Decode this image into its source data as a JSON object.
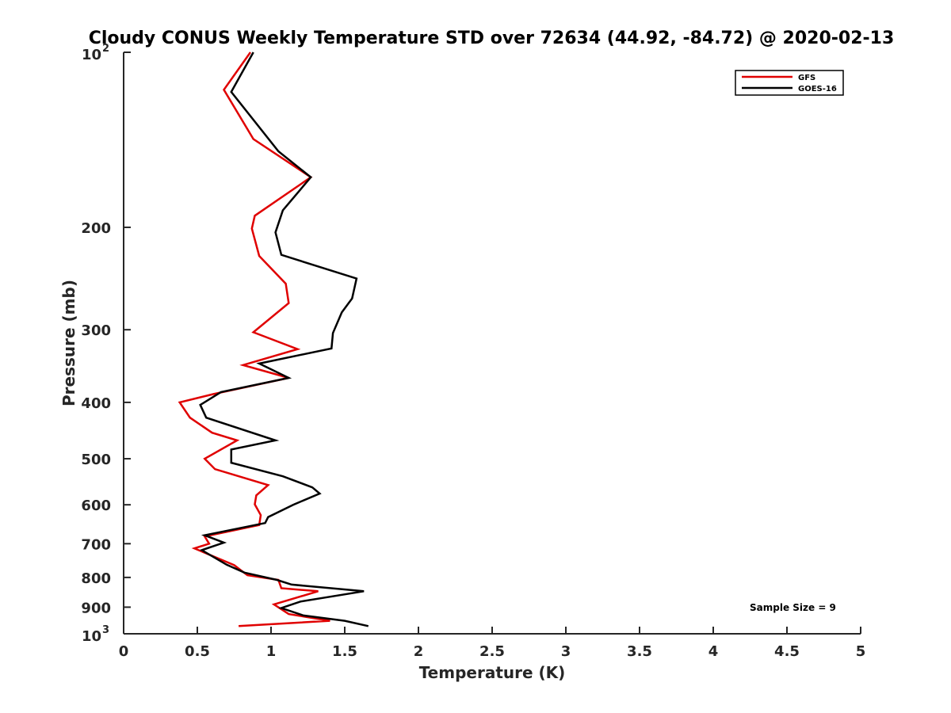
{
  "chart_data": {
    "type": "line",
    "title": "Cloudy CONUS Weekly Temperature STD over 72634 (44.92, -84.72) @ 2020-02-13",
    "xlabel": "Temperature (K)",
    "ylabel": "Pressure (mb)",
    "xlim": [
      0,
      5
    ],
    "ylim": [
      100,
      1000
    ],
    "y_scale": "log",
    "y_reversed": true,
    "grid": false,
    "legend_position": "top-right",
    "x_ticks": [
      {
        "value": 0,
        "label": "0"
      },
      {
        "value": 0.5,
        "label": "0.5"
      },
      {
        "value": 1,
        "label": "1"
      },
      {
        "value": 1.5,
        "label": "1.5"
      },
      {
        "value": 2,
        "label": "2"
      },
      {
        "value": 2.5,
        "label": "2.5"
      },
      {
        "value": 3,
        "label": "3"
      },
      {
        "value": 3.5,
        "label": "3.5"
      },
      {
        "value": 4,
        "label": "4"
      },
      {
        "value": 4.5,
        "label": "4.5"
      },
      {
        "value": 5,
        "label": "5"
      }
    ],
    "y_ticks": [
      {
        "value": 100,
        "base": "10",
        "exp": "2"
      },
      {
        "value": 200,
        "label": "200"
      },
      {
        "value": 300,
        "label": "300"
      },
      {
        "value": 400,
        "label": "400"
      },
      {
        "value": 500,
        "label": "500"
      },
      {
        "value": 600,
        "label": "600"
      },
      {
        "value": 700,
        "label": "700"
      },
      {
        "value": 800,
        "label": "800"
      },
      {
        "value": 900,
        "label": "900"
      },
      {
        "value": 1000,
        "base": "10",
        "exp": "3"
      }
    ],
    "series": [
      {
        "name": "GFS",
        "color": "#e00000",
        "points": [
          [
            0.86,
            100
          ],
          [
            0.68,
            116
          ],
          [
            0.88,
            141
          ],
          [
            1.27,
            164
          ],
          [
            0.89,
            191
          ],
          [
            0.87,
            201
          ],
          [
            0.92,
            224
          ],
          [
            1.1,
            250
          ],
          [
            1.12,
            270
          ],
          [
            0.88,
            303
          ],
          [
            1.18,
            324
          ],
          [
            0.81,
            345
          ],
          [
            1.12,
            363
          ],
          [
            0.61,
            387
          ],
          [
            0.38,
            400
          ],
          [
            0.45,
            425
          ],
          [
            0.6,
            451
          ],
          [
            0.77,
            465
          ],
          [
            0.55,
            500
          ],
          [
            0.62,
            521
          ],
          [
            0.98,
            555
          ],
          [
            0.9,
            578
          ],
          [
            0.89,
            599
          ],
          [
            0.93,
            625
          ],
          [
            0.92,
            650
          ],
          [
            0.55,
            680
          ],
          [
            0.58,
            700
          ],
          [
            0.48,
            713
          ],
          [
            0.75,
            762
          ],
          [
            0.84,
            793
          ],
          [
            1.05,
            808
          ],
          [
            1.07,
            835
          ],
          [
            1.32,
            845
          ],
          [
            1.02,
            890
          ],
          [
            1.12,
            925
          ],
          [
            1.4,
            950
          ],
          [
            0.78,
            970
          ]
        ]
      },
      {
        "name": "GOES-16",
        "color": "#000000",
        "points": [
          [
            0.88,
            100
          ],
          [
            0.73,
            117
          ],
          [
            1.05,
            148
          ],
          [
            1.27,
            164
          ],
          [
            1.08,
            187
          ],
          [
            1.03,
            204
          ],
          [
            1.07,
            223
          ],
          [
            1.58,
            245
          ],
          [
            1.55,
            265
          ],
          [
            1.48,
            280
          ],
          [
            1.42,
            304
          ],
          [
            1.41,
            323
          ],
          [
            0.92,
            343
          ],
          [
            1.12,
            363
          ],
          [
            0.66,
            384
          ],
          [
            0.52,
            404
          ],
          [
            0.56,
            425
          ],
          [
            1.03,
            465
          ],
          [
            0.73,
            482
          ],
          [
            0.73,
            508
          ],
          [
            1.08,
            536
          ],
          [
            1.28,
            560
          ],
          [
            1.33,
            574
          ],
          [
            1.15,
            600
          ],
          [
            0.98,
            630
          ],
          [
            0.96,
            645
          ],
          [
            0.55,
            677
          ],
          [
            0.68,
            697
          ],
          [
            0.53,
            718
          ],
          [
            0.7,
            761
          ],
          [
            0.82,
            785
          ],
          [
            1.04,
            808
          ],
          [
            1.14,
            823
          ],
          [
            1.63,
            845
          ],
          [
            1.2,
            880
          ],
          [
            1.07,
            903
          ],
          [
            1.22,
            930
          ],
          [
            1.5,
            950
          ],
          [
            1.66,
            970
          ]
        ]
      }
    ],
    "annotation": "Sample Size = 9"
  }
}
